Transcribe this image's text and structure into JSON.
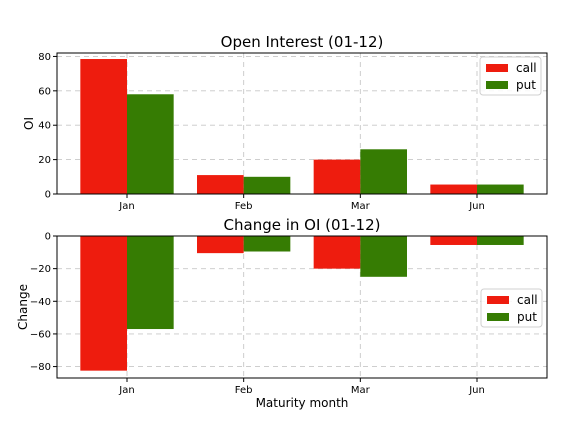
{
  "chart_data": [
    {
      "type": "bar",
      "title": "Open Interest (01-12)",
      "xlabel": "",
      "ylabel": "OI",
      "categories": [
        "Jan",
        "Feb",
        "Mar",
        "Jun"
      ],
      "series": [
        {
          "name": "call",
          "color": "#ee1c0e",
          "values": [
            78.5,
            11,
            20,
            5.5
          ]
        },
        {
          "name": "put",
          "color": "#367c03",
          "values": [
            58,
            10,
            26,
            5.5
          ]
        }
      ],
      "ylim": [
        0,
        82
      ],
      "yticks": [
        0,
        20,
        40,
        60,
        80
      ],
      "ytick_labels": [
        "0",
        "20",
        "40",
        "60",
        "80"
      ],
      "grid": true,
      "legend_position": "top-right"
    },
    {
      "type": "bar",
      "title": "Change in OI (01-12)",
      "xlabel": "Maturity month",
      "ylabel": "Change",
      "categories": [
        "Jan",
        "Feb",
        "Mar",
        "Jun"
      ],
      "series": [
        {
          "name": "call",
          "color": "#ee1c0e",
          "values": [
            -82.5,
            -10.5,
            -20,
            -5.5
          ]
        },
        {
          "name": "put",
          "color": "#367c03",
          "values": [
            -57,
            -9.5,
            -25,
            -5.5
          ]
        }
      ],
      "ylim": [
        -87,
        0
      ],
      "yticks": [
        0,
        -20,
        -40,
        -60,
        -80
      ],
      "ytick_labels": [
        "0",
        "−20",
        "−40",
        "−60",
        "−80"
      ],
      "grid": true,
      "legend_position": "center-right"
    }
  ]
}
